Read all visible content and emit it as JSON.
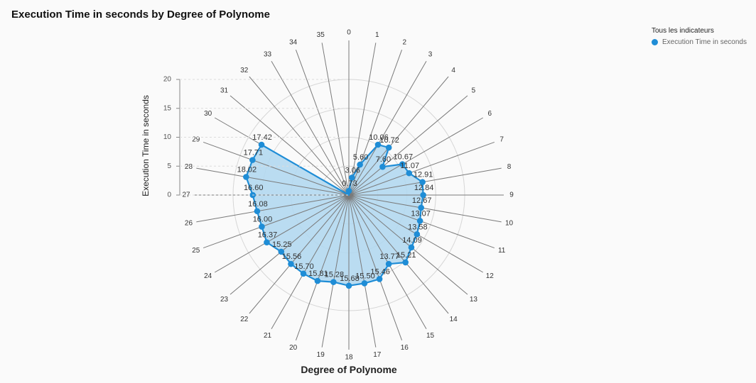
{
  "chart_data": {
    "type": "radar",
    "title": "Execution Time in seconds by Degree of Polynome",
    "xlabel": "Degree of Polynome",
    "ylabel": "Execution Time in seconds",
    "ylim": [
      0,
      20
    ],
    "yticks": [
      0,
      5,
      10,
      15,
      20
    ],
    "grid": true,
    "legend_title": "Tous les indicateurs",
    "legend_position": "top-right",
    "categories": [
      "0",
      "1",
      "2",
      "3",
      "4",
      "5",
      "6",
      "7",
      "8",
      "9",
      "10",
      "11",
      "12",
      "13",
      "14",
      "15",
      "16",
      "17",
      "18",
      "19",
      "20",
      "21",
      "22",
      "23",
      "24",
      "25",
      "26",
      "27",
      "28",
      "29",
      "30",
      "31",
      "32",
      "33",
      "34",
      "35"
    ],
    "series": [
      {
        "name": "Execution Time in seconds",
        "color": "#1f8dd6",
        "fill": "#b3d8f0",
        "values": [
          0.73,
          3.06,
          5.6,
          10.06,
          10.72,
          7.6,
          10.67,
          11.07,
          12.91,
          12.84,
          12.67,
          13.07,
          13.58,
          14.09,
          15.21,
          13.77,
          15.46,
          15.5,
          15.68,
          15.28,
          15.81,
          15.7,
          15.56,
          15.25,
          16.37,
          16.0,
          16.08,
          16.6,
          18.02,
          17.71,
          17.42,
          null,
          null,
          null,
          null,
          null
        ],
        "labels": [
          "0.73",
          "3.06",
          "5.60",
          "10.06",
          "10.72",
          "7.60",
          "10.67",
          "11.07",
          "12.91",
          "12.84",
          "12.67",
          "13.07",
          "13.58",
          "14.09",
          "15.21",
          "13.77",
          "15.46",
          "15.50",
          "15.68",
          "15.28",
          "15.81",
          "15.70",
          "15.56",
          "15.25",
          "16.37",
          "16.00",
          "16.08",
          "16.60",
          "18.02",
          "17.71",
          "17.42",
          "",
          "",
          "",
          "",
          ""
        ]
      }
    ]
  }
}
